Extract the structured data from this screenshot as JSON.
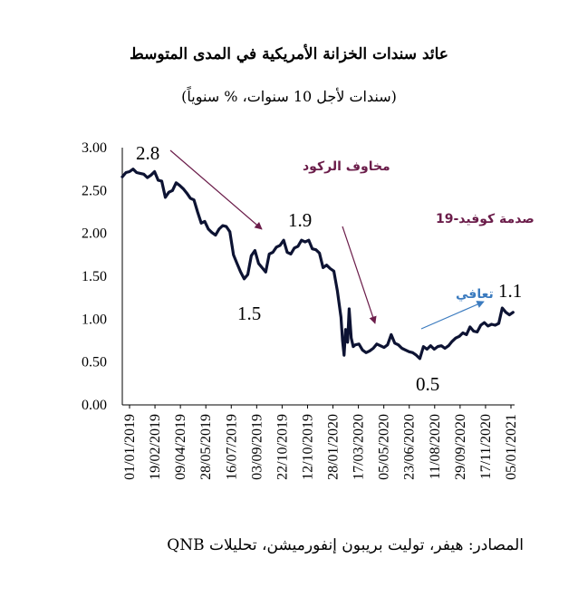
{
  "chart_data": {
    "type": "line",
    "title": "عائد سندات الخزانة الأمريكية في المدى المتوسط",
    "subtitle": "(سندات لأجل 10 سنوات، % سنوياً)",
    "source": "المصادر: هيفر، توليت بريبون إنفورميشن، تحليلات QNB",
    "ylim": [
      0,
      3
    ],
    "yticks": [
      "3.00",
      "2.50",
      "2.00",
      "1.50",
      "1.00",
      "0.50",
      "0.00"
    ],
    "xticks": [
      "01/01/2019",
      "19/02/2019",
      "09/04/2019",
      "28/05/2019",
      "16/07/2019",
      "03/09/2019",
      "22/10/2019",
      "12/10/2019",
      "28/01/2020",
      "17/03/2020",
      "05/05/2020",
      "23/06/2020",
      "11/08/2020",
      "29/09/2020",
      "17/11/2020",
      "05/01/2021"
    ],
    "series": [
      {
        "x": [
          "2019-01-01",
          "2019-01-08",
          "2019-01-15",
          "2019-01-22",
          "2019-01-29",
          "2019-02-05",
          "2019-02-12",
          "2019-02-19",
          "2019-02-26",
          "2019-03-05",
          "2019-03-12",
          "2019-03-19",
          "2019-03-26",
          "2019-04-02",
          "2019-04-09",
          "2019-04-16",
          "2019-04-23",
          "2019-04-30",
          "2019-05-07",
          "2019-05-14",
          "2019-05-21",
          "2019-05-28",
          "2019-06-04",
          "2019-06-11",
          "2019-06-18",
          "2019-06-25",
          "2019-07-02",
          "2019-07-09",
          "2019-07-16",
          "2019-07-23",
          "2019-07-30",
          "2019-08-06",
          "2019-08-13",
          "2019-08-20",
          "2019-08-27",
          "2019-09-03",
          "2019-09-10",
          "2019-09-17",
          "2019-09-24",
          "2019-10-01",
          "2019-10-08",
          "2019-10-15",
          "2019-10-22",
          "2019-10-29",
          "2019-11-05",
          "2019-11-12",
          "2019-11-19",
          "2019-11-26",
          "2019-12-03",
          "2019-12-10",
          "2019-12-17",
          "2019-12-24",
          "2019-12-31",
          "2020-01-07",
          "2020-01-14",
          "2020-01-21",
          "2020-01-28",
          "2020-02-04",
          "2020-02-11",
          "2020-02-18",
          "2020-02-25",
          "2020-03-03",
          "2020-03-06",
          "2020-03-09",
          "2020-03-12",
          "2020-03-16",
          "2020-03-19",
          "2020-03-23",
          "2020-03-27",
          "2020-03-31",
          "2020-04-07",
          "2020-04-14",
          "2020-04-21",
          "2020-04-28",
          "2020-05-05",
          "2020-05-12",
          "2020-05-19",
          "2020-05-26",
          "2020-06-02",
          "2020-06-09",
          "2020-06-16",
          "2020-06-23",
          "2020-06-30",
          "2020-07-07",
          "2020-07-14",
          "2020-07-21",
          "2020-07-28",
          "2020-08-04",
          "2020-08-11",
          "2020-08-18",
          "2020-08-25",
          "2020-09-01",
          "2020-09-08",
          "2020-09-15",
          "2020-09-22",
          "2020-09-29",
          "2020-10-06",
          "2020-10-13",
          "2020-10-20",
          "2020-10-27",
          "2020-11-03",
          "2020-11-10",
          "2020-11-17",
          "2020-11-24",
          "2020-12-01",
          "2020-12-08",
          "2020-12-15",
          "2020-12-22",
          "2020-12-29",
          "2021-01-05",
          "2021-01-12",
          "2021-01-19",
          "2021-01-26",
          "2021-02-02"
        ],
        "values": [
          2.66,
          2.71,
          2.72,
          2.75,
          2.71,
          2.7,
          2.69,
          2.65,
          2.68,
          2.72,
          2.62,
          2.61,
          2.42,
          2.48,
          2.5,
          2.59,
          2.56,
          2.52,
          2.47,
          2.41,
          2.39,
          2.25,
          2.12,
          2.14,
          2.05,
          2.01,
          1.98,
          2.05,
          2.09,
          2.08,
          2.02,
          1.75,
          1.65,
          1.55,
          1.47,
          1.52,
          1.74,
          1.8,
          1.65,
          1.6,
          1.55,
          1.76,
          1.78,
          1.84,
          1.86,
          1.92,
          1.78,
          1.76,
          1.83,
          1.85,
          1.92,
          1.9,
          1.92,
          1.82,
          1.81,
          1.77,
          1.6,
          1.63,
          1.59,
          1.56,
          1.33,
          1.02,
          0.75,
          0.58,
          0.88,
          0.73,
          1.12,
          0.78,
          0.68,
          0.7,
          0.71,
          0.64,
          0.61,
          0.63,
          0.66,
          0.71,
          0.69,
          0.67,
          0.7,
          0.82,
          0.72,
          0.7,
          0.66,
          0.64,
          0.62,
          0.61,
          0.58,
          0.54,
          0.68,
          0.65,
          0.69,
          0.65,
          0.68,
          0.69,
          0.66,
          0.69,
          0.74,
          0.78,
          0.8,
          0.84,
          0.82,
          0.91,
          0.86,
          0.85,
          0.93,
          0.96,
          0.92,
          0.94,
          0.93,
          0.95,
          1.13,
          1.08,
          1.05,
          1.08
        ]
      }
    ],
    "point_labels": [
      "2.8",
      "1.9",
      "1.5",
      "0.5",
      "1.1"
    ],
    "annotations": [
      {
        "text": "مخاوف الركود",
        "color": "#6b1d4a"
      },
      {
        "text": "صدمة كوفيد-19",
        "color": "#6b1d4a"
      },
      {
        "text": "تعافي",
        "color": "#3b7bbf"
      }
    ],
    "line_color": "#0d1333",
    "grid": false
  }
}
